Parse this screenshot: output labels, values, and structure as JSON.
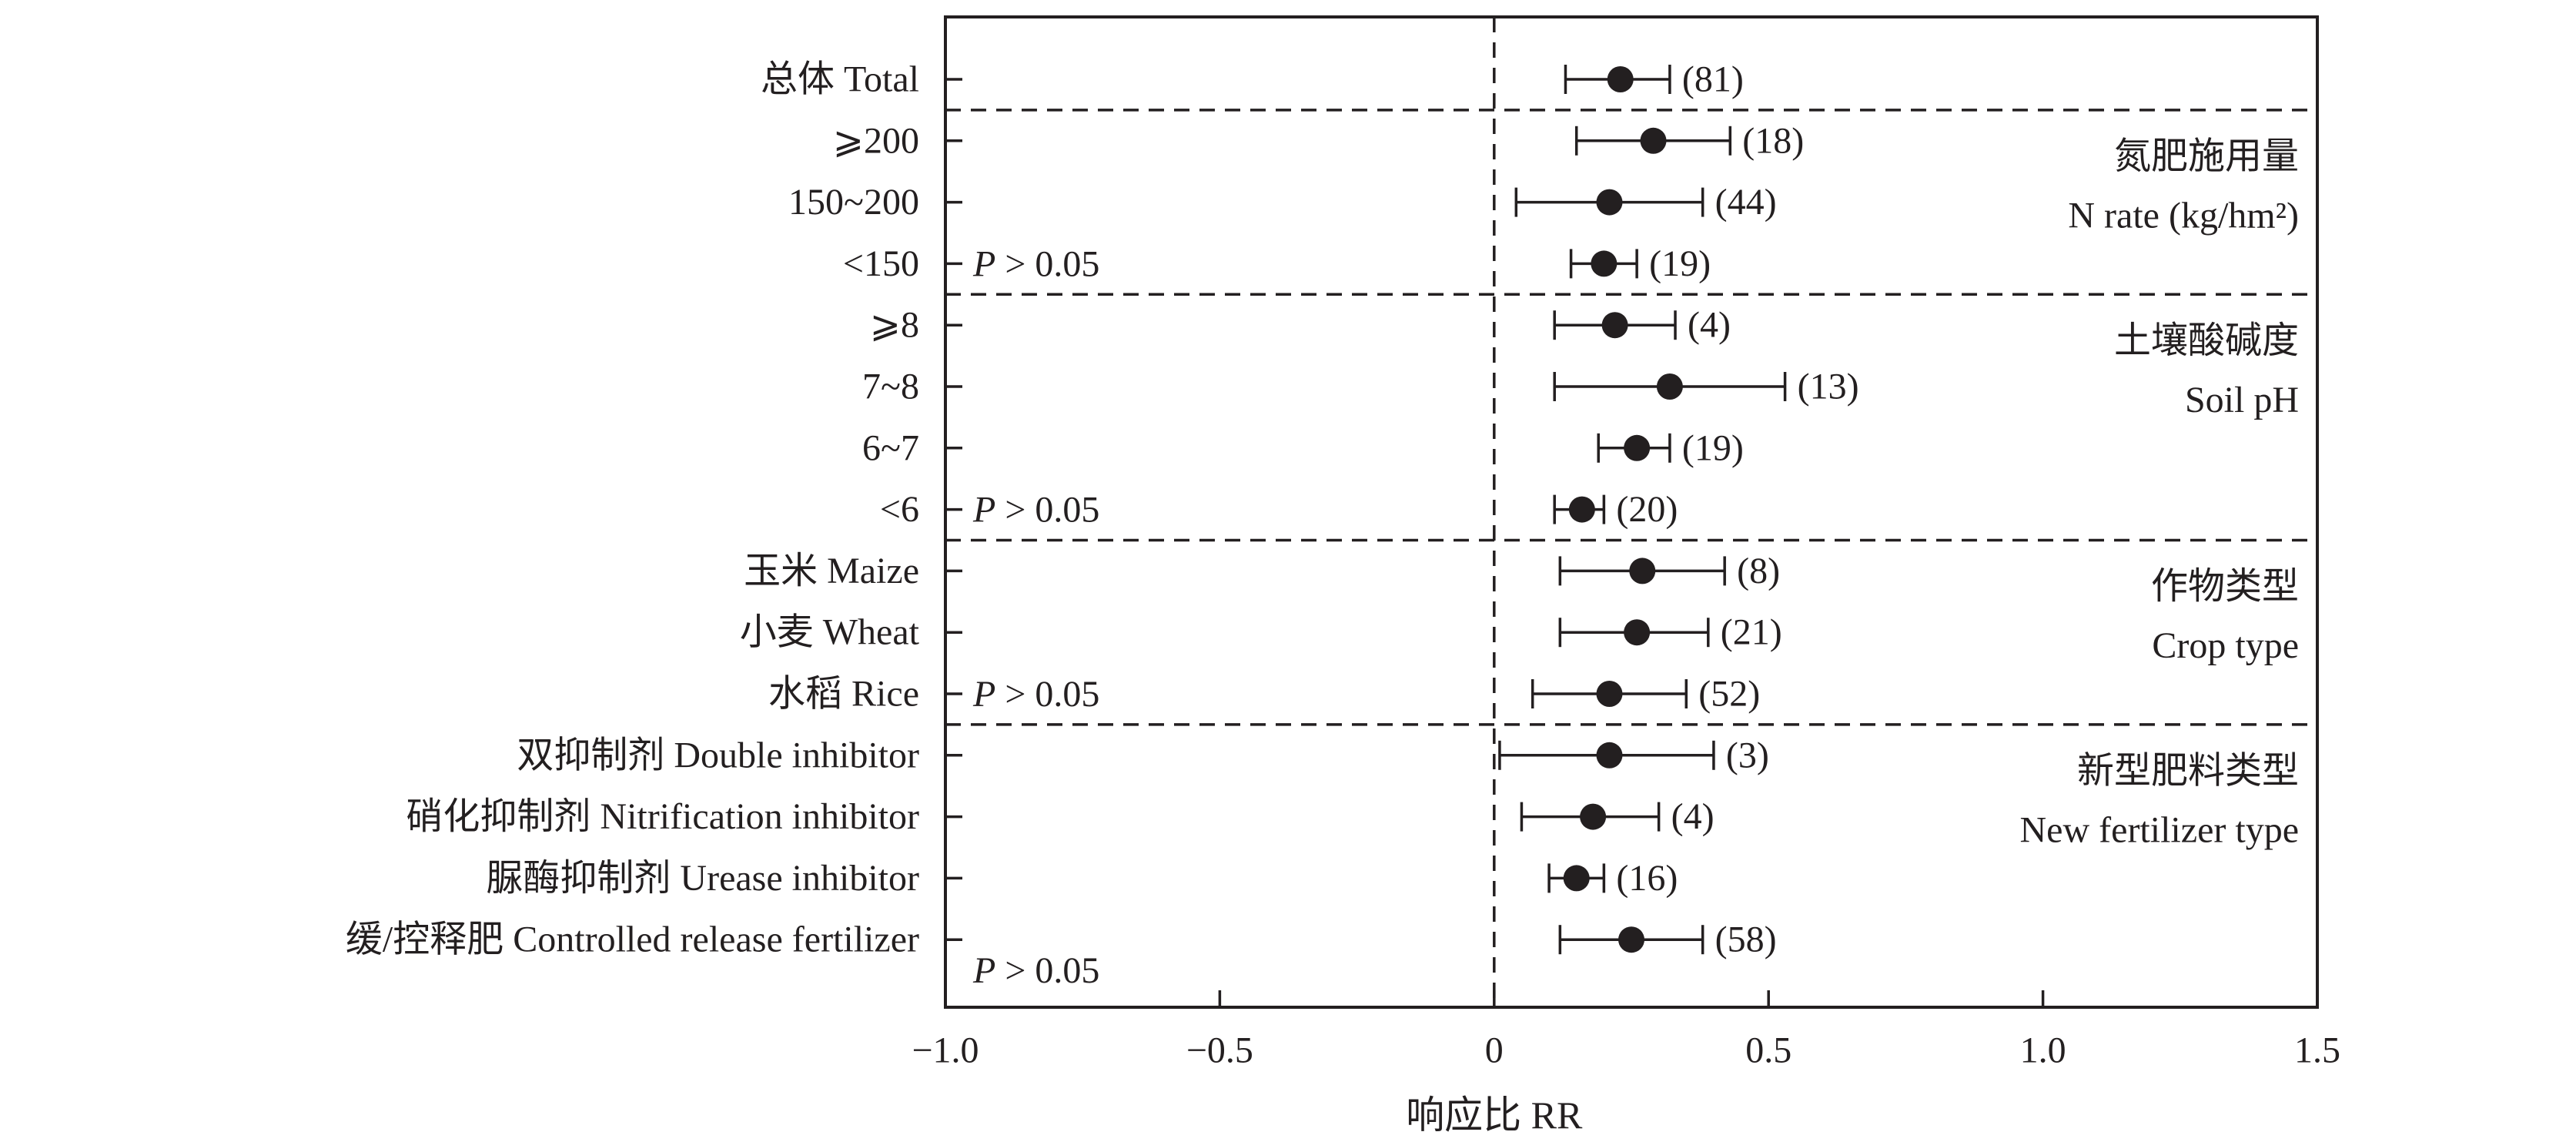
{
  "chart_data": {
    "type": "forest",
    "xlabel": "响应比 RR",
    "xlim": [
      -1.0,
      1.5
    ],
    "xticks": [
      {
        "value": -1.0,
        "label": "−1.0"
      },
      {
        "value": -0.5,
        "label": "−0.5"
      },
      {
        "value": 0,
        "label": "0"
      },
      {
        "value": 0.5,
        "label": "0.5"
      },
      {
        "value": 1.0,
        "label": "1.0"
      },
      {
        "value": 1.5,
        "label": "1.5"
      }
    ],
    "reference_line": 0,
    "rows": [
      {
        "label": "总体 Total",
        "value": 0.23,
        "ci": [
          0.13,
          0.32
        ],
        "n": "(81)"
      },
      {
        "label": "⩾200",
        "value": 0.29,
        "ci": [
          0.15,
          0.43
        ],
        "n": "(18)"
      },
      {
        "label": "150~200",
        "value": 0.21,
        "ci": [
          0.04,
          0.38
        ],
        "n": "(44)"
      },
      {
        "label": "<150",
        "value": 0.2,
        "ci": [
          0.14,
          0.26
        ],
        "n": "(19)"
      },
      {
        "label": "⩾8",
        "value": 0.22,
        "ci": [
          0.11,
          0.33
        ],
        "n": "(4)"
      },
      {
        "label": "7~8",
        "value": 0.32,
        "ci": [
          0.11,
          0.53
        ],
        "n": "(13)"
      },
      {
        "label": "6~7",
        "value": 0.26,
        "ci": [
          0.19,
          0.32
        ],
        "n": "(19)"
      },
      {
        "label": "<6",
        "value": 0.16,
        "ci": [
          0.11,
          0.2
        ],
        "n": "(20)"
      },
      {
        "label": "玉米 Maize",
        "value": 0.27,
        "ci": [
          0.12,
          0.42
        ],
        "n": "(8)"
      },
      {
        "label": "小麦 Wheat",
        "value": 0.26,
        "ci": [
          0.12,
          0.39
        ],
        "n": "(21)"
      },
      {
        "label": "水稻 Rice",
        "value": 0.21,
        "ci": [
          0.07,
          0.35
        ],
        "n": "(52)"
      },
      {
        "label": "双抑制剂 Double inhibitor",
        "value": 0.21,
        "ci": [
          0.01,
          0.4
        ],
        "n": "(3)"
      },
      {
        "label": "硝化抑制剂 Nitrification inhibitor",
        "value": 0.18,
        "ci": [
          0.05,
          0.3
        ],
        "n": "(4)"
      },
      {
        "label": "脲酶抑制剂 Urease inhibitor",
        "value": 0.15,
        "ci": [
          0.1,
          0.2
        ],
        "n": "(16)"
      },
      {
        "label": "缓/控释肥 Controlled release fertilizer",
        "value": 0.25,
        "ci": [
          0.12,
          0.38
        ],
        "n": "(58)"
      }
    ],
    "groups": [
      {
        "title_cn": "氮肥施用量",
        "title_en": "N rate (kg/hm²)",
        "first_row": 1,
        "last_row": 3,
        "p_text": "P > 0.05"
      },
      {
        "title_cn": "土壤酸碱度",
        "title_en": "Soil pH",
        "first_row": 4,
        "last_row": 7,
        "p_text": "P > 0.05"
      },
      {
        "title_cn": "作物类型",
        "title_en": "Crop type",
        "first_row": 8,
        "last_row": 10,
        "p_text": "P > 0.05"
      },
      {
        "title_cn": "新型肥料类型",
        "title_en": "New fertilizer type",
        "first_row": 11,
        "last_row": 14,
        "p_text": "P > 0.05"
      }
    ],
    "grid": false,
    "legend": "none"
  }
}
